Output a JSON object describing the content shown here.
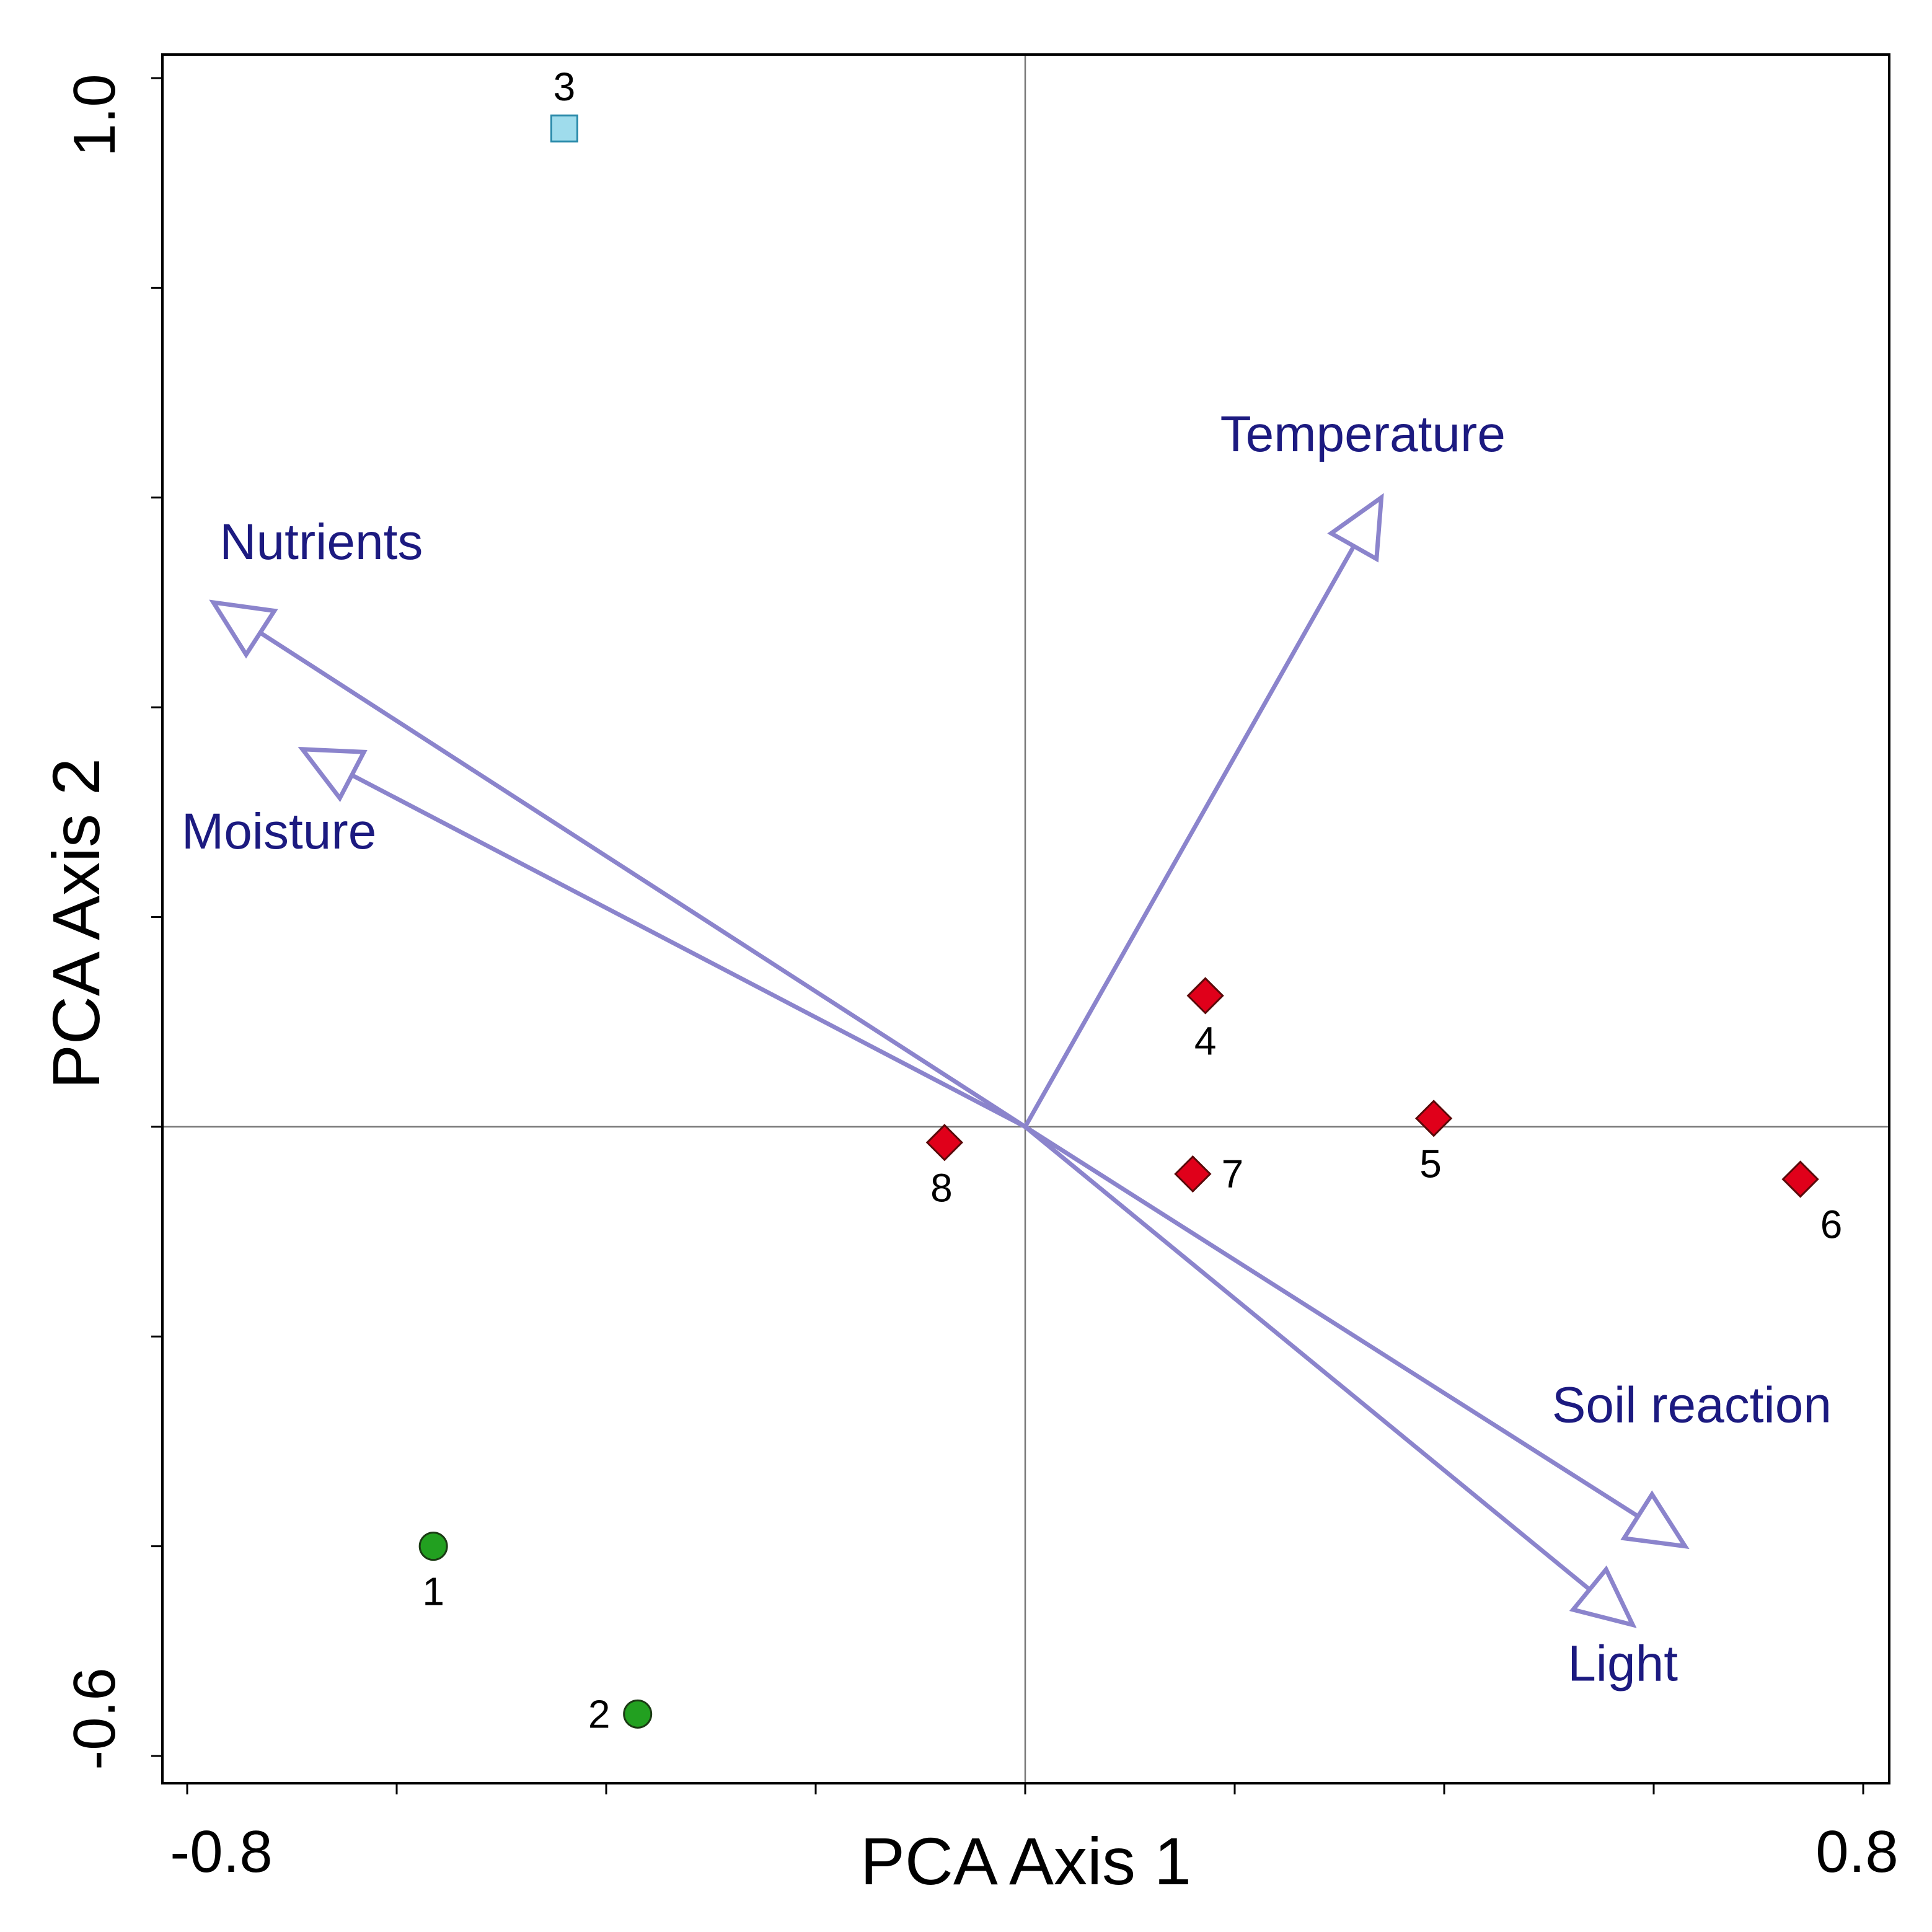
{
  "chart_data": {
    "type": "scatter",
    "subtype": "pca-biplot",
    "title": "",
    "xlabel": "PCA Axis 1",
    "ylabel": "PCA Axis 2",
    "xlim": [
      -0.8,
      0.8
    ],
    "ylim": [
      -0.6,
      1.0
    ],
    "x_tick_labels": [
      "-0.8",
      "0.8"
    ],
    "y_tick_labels": [
      "-0.6",
      "1.0"
    ],
    "x_minor_ticks": [
      -0.8,
      -0.6,
      -0.4,
      -0.2,
      0,
      0.2,
      0.4,
      0.6,
      0.8
    ],
    "y_minor_ticks": [
      -0.6,
      -0.4,
      -0.2,
      0,
      0.2,
      0.4,
      0.6,
      0.8,
      1.0
    ],
    "grid": false,
    "zero_lines": true,
    "samples": [
      {
        "label": "1",
        "x": -0.565,
        "y": -0.4,
        "group": "circle",
        "color": "#22a020"
      },
      {
        "label": "2",
        "x": -0.37,
        "y": -0.56,
        "group": "circle",
        "color": "#22a020"
      },
      {
        "label": "3",
        "x": -0.44,
        "y": 0.952,
        "group": "square",
        "color": "#9fdcec"
      },
      {
        "label": "4",
        "x": 0.172,
        "y": 0.125,
        "group": "diamond",
        "color": "#e0001a"
      },
      {
        "label": "5",
        "x": 0.39,
        "y": 0.008,
        "group": "diamond",
        "color": "#e0001a"
      },
      {
        "label": "6",
        "x": 0.74,
        "y": -0.05,
        "group": "diamond",
        "color": "#e0001a"
      },
      {
        "label": "7",
        "x": 0.16,
        "y": -0.045,
        "group": "diamond",
        "color": "#e0001a"
      },
      {
        "label": "8",
        "x": -0.077,
        "y": -0.015,
        "group": "diamond",
        "color": "#e0001a"
      }
    ],
    "vectors": [
      {
        "name": "Nutrients",
        "x": -0.775,
        "y": 0.5
      },
      {
        "name": "Moisture",
        "x": -0.69,
        "y": 0.36
      },
      {
        "name": "Temperature",
        "x": 0.34,
        "y": 0.6
      },
      {
        "name": "Soil reaction",
        "x": 0.63,
        "y": -0.4
      },
      {
        "name": "Light",
        "x": 0.58,
        "y": -0.475
      }
    ],
    "colors": {
      "vector": "#8b84cc",
      "vector_label": "#1c1a80",
      "axis": "#000000",
      "zero_line": "#777777"
    }
  }
}
